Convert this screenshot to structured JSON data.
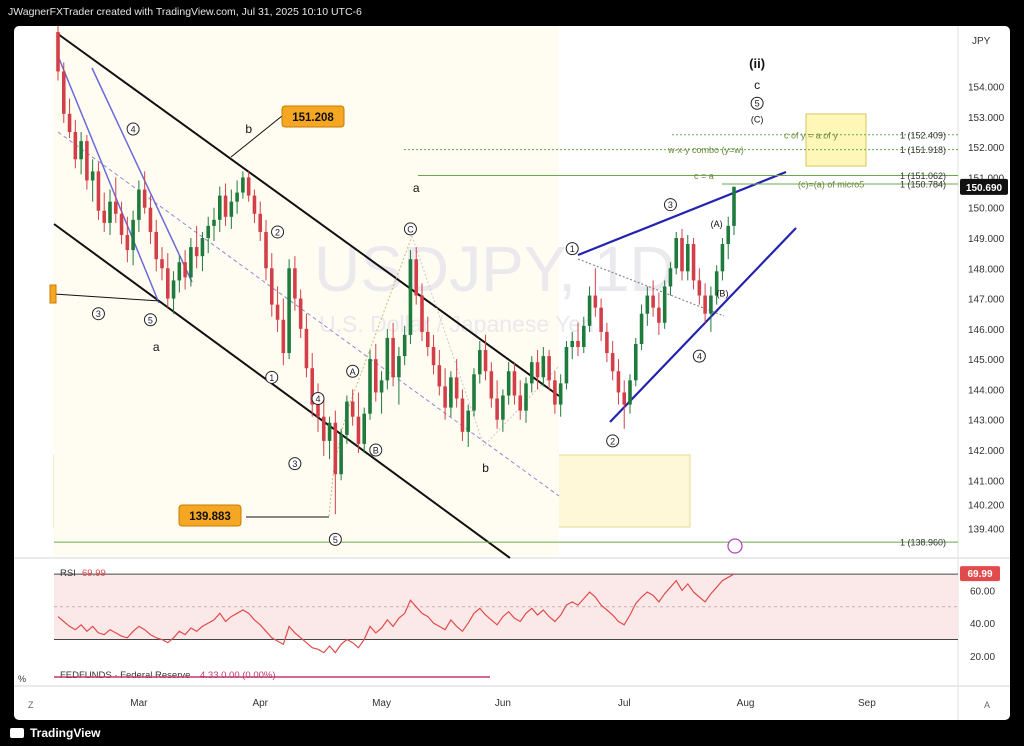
{
  "header": {
    "text": "JWagnerFXTrader created with TradingView.com, Jul 31, 2025 10:10 UTC-6"
  },
  "footer": {
    "brand": "TradingView"
  },
  "currency_label": "JPY",
  "watermark": {
    "symbol": "USDJPY, 1D",
    "name": "U.S. Dollar / Japanese Yen"
  },
  "corner_labels": {
    "percent": "%",
    "z": "Z",
    "a": "A"
  },
  "chart_data": {
    "type": "candlestick",
    "symbol": "USDJPY",
    "timeframe": "1D",
    "y_range": [
      138.5,
      156.0
    ],
    "y_ticks": [
      {
        "v": 154.0,
        "label": "154.000"
      },
      {
        "v": 153.0,
        "label": "153.000"
      },
      {
        "v": 152.0,
        "label": "152.000"
      },
      {
        "v": 151.0,
        "label": "151.000"
      },
      {
        "v": 150.0,
        "label": "150.000"
      },
      {
        "v": 149.0,
        "label": "149.000"
      },
      {
        "v": 148.0,
        "label": "148.000"
      },
      {
        "v": 147.0,
        "label": "147.000"
      },
      {
        "v": 146.0,
        "label": "146.000"
      },
      {
        "v": 145.0,
        "label": "145.000"
      },
      {
        "v": 144.0,
        "label": "144.000"
      },
      {
        "v": 143.0,
        "label": "143.000"
      },
      {
        "v": 142.0,
        "label": "142.000"
      },
      {
        "v": 141.0,
        "label": "141.000"
      },
      {
        "v": 140.2,
        "label": "140.200"
      },
      {
        "v": 139.4,
        "label": "139.400"
      }
    ],
    "x_ticks": [
      {
        "i": 14,
        "label": "Mar"
      },
      {
        "i": 35,
        "label": "Apr"
      },
      {
        "i": 56,
        "label": "May"
      },
      {
        "i": 77,
        "label": "Jun"
      },
      {
        "i": 98,
        "label": "Jul"
      },
      {
        "i": 119,
        "label": "Aug"
      },
      {
        "i": 140,
        "label": "Sep"
      }
    ],
    "last_price": {
      "v": 150.69,
      "label": "150.690"
    },
    "callouts": [
      {
        "label": "151.208",
        "i": 33,
        "v": 151.208
      },
      {
        "label": "139.883",
        "i": 48,
        "v": 139.883
      }
    ],
    "candles": [
      [
        155.8,
        156.0,
        154.2,
        154.5
      ],
      [
        154.5,
        154.8,
        152.8,
        153.1
      ],
      [
        153.1,
        153.6,
        152.3,
        152.5
      ],
      [
        152.5,
        152.9,
        151.3,
        151.6
      ],
      [
        151.6,
        152.5,
        151.1,
        152.2
      ],
      [
        152.2,
        152.4,
        150.6,
        150.9
      ],
      [
        150.9,
        151.6,
        150.2,
        151.2
      ],
      [
        151.2,
        151.5,
        149.6,
        149.9
      ],
      [
        149.9,
        150.5,
        149.2,
        149.5
      ],
      [
        149.5,
        150.6,
        149.1,
        150.2
      ],
      [
        150.2,
        151.0,
        149.5,
        149.8
      ],
      [
        149.8,
        150.2,
        148.8,
        149.1
      ],
      [
        149.1,
        149.7,
        148.2,
        148.6
      ],
      [
        148.6,
        149.9,
        148.1,
        149.6
      ],
      [
        149.6,
        150.9,
        149.2,
        150.6
      ],
      [
        150.6,
        151.2,
        149.8,
        150.0
      ],
      [
        150.0,
        150.4,
        148.8,
        149.2
      ],
      [
        149.2,
        149.6,
        147.9,
        148.3
      ],
      [
        148.3,
        148.7,
        147.6,
        148.0
      ],
      [
        148.0,
        148.5,
        146.7,
        147.0
      ],
      [
        147.0,
        147.9,
        146.5,
        147.6
      ],
      [
        147.6,
        148.4,
        147.2,
        148.2
      ],
      [
        148.2,
        148.6,
        147.3,
        147.7
      ],
      [
        147.7,
        149.0,
        147.4,
        148.7
      ],
      [
        148.7,
        149.4,
        148.0,
        148.4
      ],
      [
        148.4,
        149.2,
        147.9,
        149.0
      ],
      [
        149.0,
        149.7,
        148.5,
        149.4
      ],
      [
        149.4,
        150.0,
        148.9,
        149.6
      ],
      [
        149.6,
        150.7,
        149.2,
        150.4
      ],
      [
        150.4,
        150.8,
        149.4,
        149.7
      ],
      [
        149.7,
        150.6,
        149.3,
        150.2
      ],
      [
        150.2,
        150.9,
        149.8,
        150.5
      ],
      [
        150.5,
        151.2,
        150.3,
        151.0
      ],
      [
        151.0,
        151.2,
        150.2,
        150.4
      ],
      [
        150.4,
        150.6,
        149.5,
        149.8
      ],
      [
        149.8,
        150.2,
        148.9,
        149.2
      ],
      [
        149.2,
        149.6,
        147.6,
        148.0
      ],
      [
        148.0,
        148.5,
        146.4,
        146.8
      ],
      [
        146.8,
        147.4,
        145.9,
        146.3
      ],
      [
        146.3,
        147.0,
        144.8,
        145.2
      ],
      [
        145.2,
        148.3,
        145.0,
        148.0
      ],
      [
        148.0,
        148.4,
        146.6,
        147.0
      ],
      [
        147.0,
        147.3,
        145.7,
        146.0
      ],
      [
        146.0,
        146.5,
        144.4,
        144.7
      ],
      [
        144.7,
        145.2,
        143.1,
        143.5
      ],
      [
        143.5,
        144.2,
        142.6,
        143.1
      ],
      [
        143.1,
        143.7,
        141.8,
        142.3
      ],
      [
        142.3,
        143.1,
        141.7,
        142.9
      ],
      [
        142.9,
        143.3,
        139.88,
        141.2
      ],
      [
        141.2,
        142.7,
        141.0,
        142.5
      ],
      [
        142.5,
        143.8,
        142.2,
        143.6
      ],
      [
        143.6,
        144.0,
        142.8,
        143.1
      ],
      [
        143.1,
        143.9,
        141.9,
        142.2
      ],
      [
        142.2,
        143.4,
        141.9,
        143.2
      ],
      [
        143.2,
        145.3,
        143.0,
        145.0
      ],
      [
        145.0,
        145.5,
        143.6,
        143.9
      ],
      [
        143.9,
        144.6,
        143.2,
        144.3
      ],
      [
        144.3,
        146.0,
        144.0,
        145.7
      ],
      [
        145.7,
        146.2,
        144.1,
        144.4
      ],
      [
        144.4,
        145.4,
        143.5,
        145.1
      ],
      [
        145.1,
        146.1,
        144.8,
        145.8
      ],
      [
        145.8,
        148.6,
        145.5,
        148.3
      ],
      [
        148.3,
        148.7,
        146.8,
        147.1
      ],
      [
        147.1,
        147.5,
        145.6,
        145.9
      ],
      [
        145.9,
        146.4,
        145.1,
        145.4
      ],
      [
        145.4,
        145.8,
        144.5,
        144.8
      ],
      [
        144.8,
        145.3,
        143.8,
        144.1
      ],
      [
        144.1,
        144.7,
        143.0,
        143.4
      ],
      [
        143.4,
        144.6,
        143.1,
        144.4
      ],
      [
        144.4,
        145.0,
        143.4,
        143.7
      ],
      [
        143.7,
        144.0,
        142.3,
        142.6
      ],
      [
        142.6,
        143.5,
        142.1,
        143.3
      ],
      [
        143.3,
        144.7,
        143.1,
        144.5
      ],
      [
        144.5,
        145.6,
        144.2,
        145.3
      ],
      [
        145.3,
        145.8,
        144.3,
        144.6
      ],
      [
        144.6,
        144.9,
        143.4,
        143.7
      ],
      [
        143.7,
        144.3,
        142.7,
        143.0
      ],
      [
        143.0,
        144.0,
        142.6,
        143.8
      ],
      [
        143.8,
        144.9,
        143.5,
        144.6
      ],
      [
        144.6,
        144.9,
        143.5,
        143.8
      ],
      [
        143.8,
        144.3,
        143.0,
        143.3
      ],
      [
        143.3,
        144.4,
        142.9,
        144.2
      ],
      [
        144.2,
        145.1,
        143.9,
        144.9
      ],
      [
        144.9,
        145.3,
        144.0,
        144.4
      ],
      [
        144.4,
        145.4,
        144.1,
        145.1
      ],
      [
        145.1,
        145.3,
        144.0,
        144.3
      ],
      [
        144.3,
        144.6,
        143.2,
        143.5
      ],
      [
        143.5,
        144.5,
        143.1,
        144.2
      ],
      [
        144.2,
        145.6,
        144.0,
        145.4
      ],
      [
        145.4,
        145.9,
        145.0,
        145.6
      ],
      [
        145.6,
        146.2,
        145.1,
        145.4
      ],
      [
        145.4,
        146.4,
        145.2,
        146.1
      ],
      [
        146.1,
        147.4,
        145.9,
        147.1
      ],
      [
        147.1,
        148.0,
        146.4,
        146.7
      ],
      [
        146.7,
        147.0,
        145.6,
        145.9
      ],
      [
        145.9,
        146.2,
        144.9,
        145.2
      ],
      [
        145.2,
        145.6,
        144.3,
        144.6
      ],
      [
        144.6,
        145.0,
        143.5,
        143.9
      ],
      [
        143.9,
        144.3,
        142.7,
        143.5
      ],
      [
        143.5,
        144.5,
        143.2,
        144.3
      ],
      [
        144.3,
        145.7,
        144.1,
        145.5
      ],
      [
        145.5,
        146.8,
        145.3,
        146.5
      ],
      [
        146.5,
        147.4,
        146.1,
        147.1
      ],
      [
        147.1,
        147.6,
        146.4,
        146.7
      ],
      [
        146.7,
        147.2,
        145.8,
        146.2
      ],
      [
        146.2,
        147.6,
        146.0,
        147.4
      ],
      [
        147.4,
        148.2,
        147.1,
        148.0
      ],
      [
        148.0,
        149.2,
        147.8,
        149.0
      ],
      [
        149.0,
        149.3,
        147.6,
        147.9
      ],
      [
        147.9,
        149.1,
        147.6,
        148.8
      ],
      [
        148.8,
        149.0,
        147.3,
        147.6
      ],
      [
        147.6,
        148.0,
        146.8,
        147.1
      ],
      [
        147.1,
        147.5,
        146.2,
        146.5
      ],
      [
        146.5,
        147.4,
        145.9,
        147.1
      ],
      [
        147.1,
        148.1,
        146.8,
        147.9
      ],
      [
        147.9,
        149.0,
        147.6,
        148.8
      ],
      [
        148.8,
        149.7,
        148.3,
        149.4
      ],
      [
        149.4,
        150.7,
        149.1,
        150.69
      ]
    ],
    "rsi": {
      "label": "RSI",
      "value_label": "69.99",
      "y_range": [
        15,
        78
      ],
      "y_ticks": [
        {
          "v": 60,
          "label": "60.00"
        },
        {
          "v": 40,
          "label": "40.00"
        },
        {
          "v": 20,
          "label": "20.00"
        }
      ],
      "levels": [
        70,
        30
      ],
      "values": [
        44,
        41,
        38,
        36,
        39,
        35,
        38,
        34,
        33,
        36,
        34,
        32,
        31,
        35,
        38,
        36,
        33,
        31,
        30,
        28,
        31,
        35,
        33,
        37,
        35,
        38,
        40,
        42,
        46,
        41,
        44,
        46,
        48,
        46,
        42,
        39,
        35,
        31,
        29,
        27,
        38,
        34,
        31,
        28,
        25,
        24,
        22,
        26,
        22,
        27,
        30,
        28,
        25,
        30,
        38,
        34,
        37,
        42,
        38,
        43,
        46,
        54,
        50,
        46,
        44,
        40,
        38,
        36,
        42,
        38,
        35,
        40,
        46,
        49,
        45,
        42,
        39,
        44,
        47,
        43,
        41,
        46,
        49,
        45,
        48,
        44,
        41,
        45,
        51,
        53,
        51,
        55,
        59,
        56,
        51,
        48,
        45,
        41,
        39,
        45,
        52,
        56,
        59,
        57,
        53,
        58,
        62,
        66,
        60,
        64,
        59,
        56,
        53,
        58,
        62,
        66,
        68,
        69.99
      ]
    },
    "fed_funds": {
      "label": "FEDFUNDS · Federal Reserve",
      "value": "4.33 0.00 (0.00%)"
    },
    "horizontal_levels": [
      {
        "v": 152.409,
        "label": "1 (152.409)",
        "note": "c of y = a of y"
      },
      {
        "v": 151.918,
        "label": "1 (151.918)",
        "note": "w-x-y combo (y=w)"
      },
      {
        "v": 151.062,
        "label": "1 (151.062)",
        "note": "c = a"
      },
      {
        "v": 150.784,
        "label": "1 (150.784)",
        "note": "(c)=(a) of micro5"
      },
      {
        "v": 138.96,
        "label": "1 (138.960)",
        "note": ""
      }
    ],
    "wave_labels": [
      {
        "text": "(ii)",
        "i": 121,
        "v": 154.75
      },
      {
        "text": "c",
        "i": 121,
        "v": 154.05
      },
      {
        "text": "5",
        "i": 121,
        "v": 153.45,
        "circle": true
      },
      {
        "text": "(C)",
        "i": 121,
        "v": 152.95
      },
      {
        "text": "b",
        "i": 33,
        "v": 152.6
      },
      {
        "text": "a",
        "i": 62,
        "v": 150.65
      },
      {
        "text": "a",
        "i": 17,
        "v": 145.4
      },
      {
        "text": "b",
        "i": 74,
        "v": 141.4
      },
      {
        "text": "4",
        "i": 13,
        "v": 152.6,
        "circle": true
      },
      {
        "text": "2",
        "i": 38,
        "v": 149.2,
        "circle": true
      },
      {
        "text": "3",
        "i": 7,
        "v": 146.5,
        "circle": true
      },
      {
        "text": "5",
        "i": 16,
        "v": 146.3,
        "circle": true
      },
      {
        "text": "1",
        "i": 37,
        "v": 144.4,
        "circle": true
      },
      {
        "text": "4",
        "i": 45,
        "v": 143.7,
        "circle": true
      },
      {
        "text": "3",
        "i": 41,
        "v": 141.55,
        "circle": true
      },
      {
        "text": "5",
        "i": 48,
        "v": 139.05,
        "circle": true
      },
      {
        "text": "A",
        "i": 51,
        "v": 144.6,
        "circle": true
      },
      {
        "text": "B",
        "i": 55,
        "v": 142.0,
        "circle": true
      },
      {
        "text": "C",
        "i": 61,
        "v": 149.3,
        "circle": true
      },
      {
        "text": "1",
        "i": 89,
        "v": 148.65,
        "circle": true
      },
      {
        "text": "2",
        "i": 96,
        "v": 142.3,
        "circle": true
      },
      {
        "text": "3",
        "i": 106,
        "v": 150.1,
        "circle": true
      },
      {
        "text": "4",
        "i": 111,
        "v": 145.1,
        "circle": true
      },
      {
        "text": "(A)",
        "i": 114,
        "v": 149.5
      },
      {
        "text": "(B)",
        "i": 115,
        "v": 147.2
      }
    ]
  }
}
